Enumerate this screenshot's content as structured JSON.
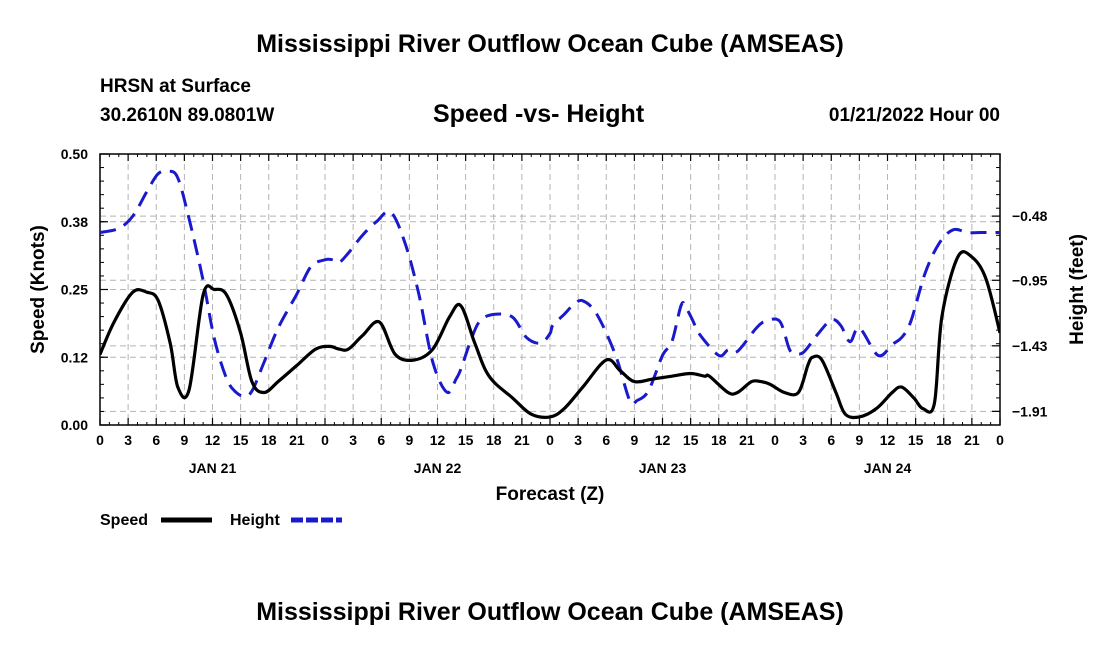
{
  "header": {
    "title": "Mississippi River Outflow Ocean Cube (AMSEAS)",
    "station": "HRSN at Surface",
    "coordinates": "30.2610N  89.0801W",
    "subtitle": "Speed -vs- Height",
    "datetime": "01/21/2022 Hour 00",
    "bottom_title": "Mississippi River Outflow Ocean Cube (AMSEAS)"
  },
  "colors": {
    "speed": "#000000",
    "height": "#1a1acc",
    "grid": "#b4b4b4"
  },
  "chart_data": {
    "type": "line",
    "title": "Speed -vs- Height",
    "xlabel": "Forecast (Z)",
    "ylabel": "Speed (Knots)",
    "y2label": "Height (feet)",
    "x_hours_range": [
      0,
      96
    ],
    "ylim": [
      0,
      0.5
    ],
    "y_ticks": [
      "0.00",
      "0.12",
      "0.25",
      "0.38",
      "0.50"
    ],
    "y_tick_values": [
      0,
      0.125,
      0.25,
      0.375,
      0.5
    ],
    "y2lim": [
      -2.01,
      -0.025
    ],
    "y2_ticks": [
      "−1.91",
      "−1.43",
      "−0.95",
      "−0.48"
    ],
    "y2_tick_values": [
      -1.91,
      -1.43,
      -0.95,
      -0.48
    ],
    "x_ticks": [
      "0",
      "3",
      "6",
      "9",
      "12",
      "15",
      "18",
      "21",
      "0",
      "3",
      "6",
      "9",
      "12",
      "15",
      "18",
      "21",
      "0",
      "3",
      "6",
      "9",
      "12",
      "15",
      "18",
      "21",
      "0",
      "3",
      "6",
      "9",
      "12",
      "15",
      "18",
      "21",
      "0"
    ],
    "day_labels": [
      {
        "label": "JAN 21",
        "hour": 12
      },
      {
        "label": "JAN 22",
        "hour": 36
      },
      {
        "label": "JAN 23",
        "hour": 60
      },
      {
        "label": "JAN 24",
        "hour": 84
      }
    ],
    "legend": [
      {
        "name": "Speed",
        "style": "solid"
      },
      {
        "name": "Height",
        "style": "dashed"
      }
    ],
    "series": [
      {
        "name": "Speed",
        "unit": "Knots",
        "x": [
          0,
          1.5,
          3.5,
          5,
          6.2,
          7.5,
          8.3,
          9.5,
          11,
          12.2,
          13.5,
          15,
          16.2,
          17.5,
          19,
          21,
          23,
          24.5,
          25.5,
          26.5,
          28,
          29.8,
          31.5,
          33.5,
          35.5,
          37.3,
          38.5,
          40,
          41.5,
          44,
          46,
          48,
          49.5,
          51.5,
          54,
          55.5,
          57,
          59,
          61,
          63,
          64.5,
          65,
          67,
          68,
          69.5,
          70.5,
          71.5,
          73,
          74.5,
          75.5,
          76,
          77,
          78.5,
          79.5,
          81,
          82.8,
          84.5,
          85.5,
          86.8,
          87.8,
          89,
          89.8,
          91.5,
          93,
          94.5,
          96
        ],
        "values": [
          0.13,
          0.19,
          0.245,
          0.245,
          0.23,
          0.15,
          0.07,
          0.065,
          0.24,
          0.25,
          0.24,
          0.17,
          0.08,
          0.06,
          0.08,
          0.11,
          0.14,
          0.145,
          0.14,
          0.14,
          0.165,
          0.19,
          0.13,
          0.12,
          0.14,
          0.2,
          0.22,
          0.15,
          0.09,
          0.05,
          0.02,
          0.015,
          0.03,
          0.07,
          0.12,
          0.1,
          0.08,
          0.085,
          0.09,
          0.095,
          0.09,
          0.09,
          0.06,
          0.06,
          0.08,
          0.08,
          0.075,
          0.06,
          0.06,
          0.11,
          0.125,
          0.12,
          0.06,
          0.02,
          0.015,
          0.03,
          0.06,
          0.07,
          0.05,
          0.03,
          0.04,
          0.2,
          0.31,
          0.31,
          0.27,
          0.17
        ]
      },
      {
        "name": "Height",
        "unit": "feet",
        "x": [
          0,
          2,
          3.5,
          5,
          6.2,
          7.3,
          8.3,
          9.5,
          11,
          12.2,
          13.5,
          14.5,
          15.5,
          16.3,
          17.5,
          19,
          21,
          22.5,
          24,
          24.8,
          25.5,
          26.5,
          28,
          29.5,
          31,
          32.5,
          34,
          35.5,
          37,
          38,
          38.5,
          39.5,
          40.5,
          42,
          44,
          45.5,
          47,
          48,
          48.3,
          49.5,
          50.5,
          51.5,
          53,
          55,
          56.5,
          57.3,
          58.5,
          60,
          61,
          62,
          62.5,
          63.2,
          64,
          66,
          67,
          68,
          70,
          71,
          72.5,
          73.5,
          74,
          75,
          76.5,
          78,
          79,
          80,
          81,
          83,
          84.5,
          85.5,
          86.5,
          88,
          89.5,
          91,
          92.5,
          94,
          95,
          96
        ],
        "values": [
          -0.6,
          -0.57,
          -0.48,
          -0.3,
          -0.17,
          -0.15,
          -0.2,
          -0.5,
          -0.95,
          -1.38,
          -1.67,
          -1.77,
          -1.8,
          -1.75,
          -1.55,
          -1.3,
          -1.05,
          -0.85,
          -0.8,
          -0.8,
          -0.82,
          -0.75,
          -0.62,
          -0.52,
          -0.45,
          -0.67,
          -1.05,
          -1.55,
          -1.77,
          -1.67,
          -1.6,
          -1.4,
          -1.25,
          -1.2,
          -1.22,
          -1.37,
          -1.41,
          -1.34,
          -1.28,
          -1.2,
          -1.13,
          -1.1,
          -1.2,
          -1.5,
          -1.83,
          -1.83,
          -1.76,
          -1.5,
          -1.4,
          -1.13,
          -1.15,
          -1.24,
          -1.35,
          -1.5,
          -1.46,
          -1.47,
          -1.3,
          -1.25,
          -1.25,
          -1.45,
          -1.48,
          -1.48,
          -1.35,
          -1.24,
          -1.28,
          -1.4,
          -1.3,
          -1.5,
          -1.42,
          -1.37,
          -1.25,
          -0.9,
          -0.68,
          -0.58,
          -0.6,
          -0.6,
          -0.6,
          -0.6
        ]
      }
    ]
  }
}
